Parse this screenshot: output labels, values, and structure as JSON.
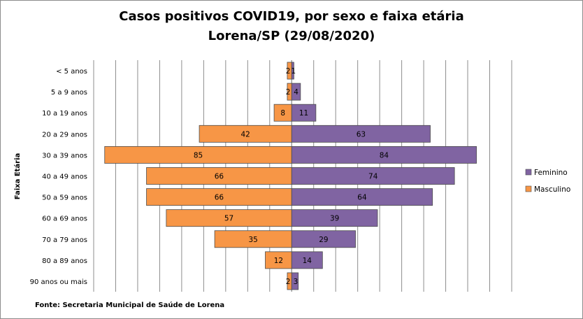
{
  "title_line1": "Casos positivos COVID19, por sexo e faixa etária",
  "title_line2": "Lorena/SP (29/08/2020)",
  "source": "Fonte: Secretaria Municipal  de Saúde de Lorena",
  "chart_data": {
    "type": "bar",
    "orientation": "horizontal",
    "layout": "population-pyramid",
    "categories": [
      "< 5 anos",
      "5 a 9 anos",
      "10 a 19 anos",
      "20 a 29 anos",
      "30 a 39 anos",
      "40 a 49 anos",
      "50 a 59 anos",
      "60 a 69 anos",
      "70 a 79 anos",
      "80 a 89 anos",
      "90 anos ou mais"
    ],
    "series": [
      {
        "name": "Masculino",
        "color": "#F79646",
        "side": "left",
        "values": [
          2,
          2,
          8,
          42,
          85,
          66,
          66,
          57,
          35,
          12,
          2
        ]
      },
      {
        "name": "Feminino",
        "color": "#8064A2",
        "side": "right",
        "values": [
          1,
          4,
          11,
          63,
          84,
          74,
          64,
          39,
          29,
          14,
          3
        ]
      }
    ],
    "ylabel": "Faixa Etária",
    "xlim": [
      -90,
      100
    ],
    "grid": "vertical",
    "legend": "right"
  }
}
